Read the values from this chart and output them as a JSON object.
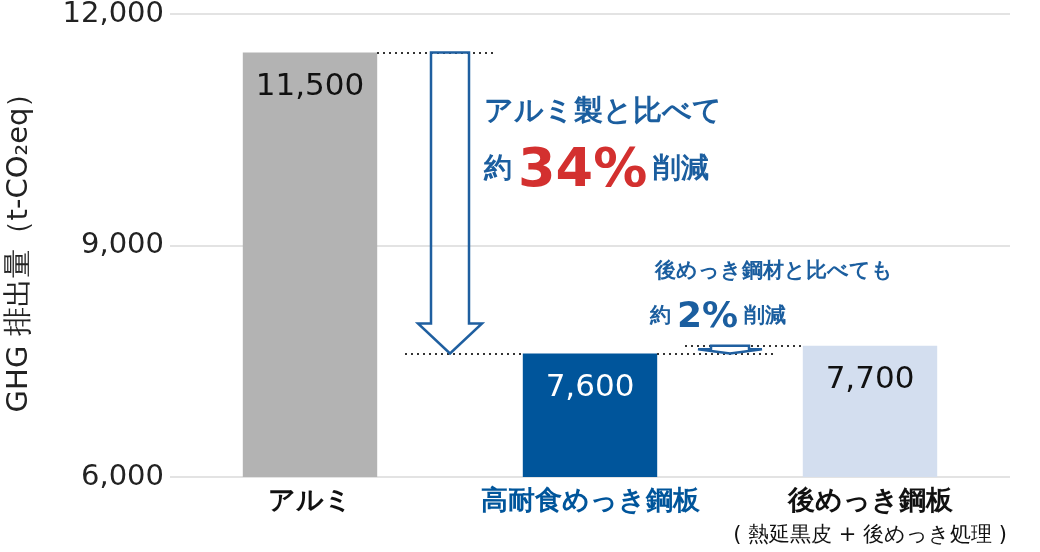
{
  "chart_data": {
    "type": "bar",
    "categories": [
      "アルミ",
      "高耐食めっき鋼板",
      "後めっき鋼板\n( 熱延黒皮 + 後めっき処理 )"
    ],
    "values": [
      11500,
      7600,
      7700
    ],
    "value_labels": [
      "11,500",
      "7,600",
      "7,700"
    ],
    "colors": [
      "#b3b3b3",
      "#00559b",
      "#d3deef"
    ],
    "ylabel": "GHG 排出量（t-CO₂eq）",
    "ylim": [
      6000,
      12000
    ],
    "yticks": [
      {
        "value": 6000,
        "label": "6,000"
      },
      {
        "value": 9000,
        "label": "9,000"
      },
      {
        "value": 12000,
        "label": "12,000"
      }
    ],
    "grid": "y",
    "annotations": [
      "アルミ製と比べて",
      "約34%削減",
      "後めっき鋼材と比べても",
      {
        "text": "約2%削減",
        "x": "後めっき鋼板\n( 熱延黒皮 + 後めっき処理 )",
        "y": 7700
      }
    ]
  }
}
